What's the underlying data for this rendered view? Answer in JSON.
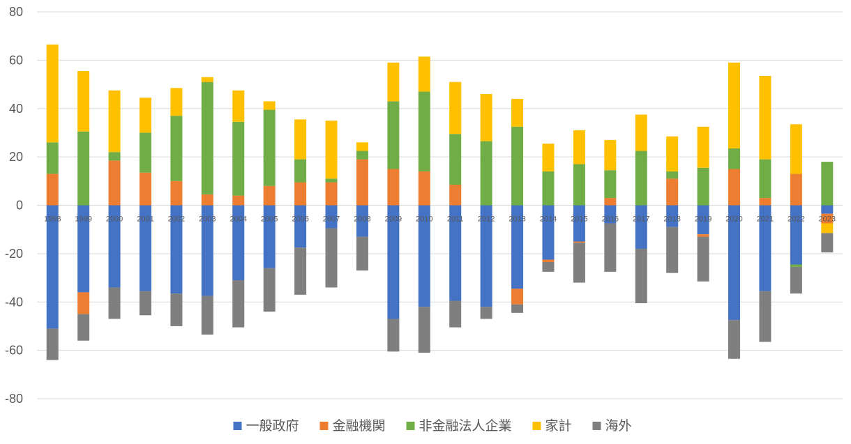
{
  "chart_data": {
    "type": "bar",
    "stacked": true,
    "categories": [
      "1998",
      "1999",
      "2000",
      "2001",
      "2002",
      "2003",
      "2004",
      "2005",
      "2006",
      "2007",
      "2008",
      "2009",
      "2010",
      "2011",
      "2012",
      "2013",
      "2014",
      "2015",
      "2016",
      "2017",
      "2018",
      "2019",
      "2020",
      "2021",
      "2022",
      "2023"
    ],
    "ylim": [
      -80,
      80
    ],
    "yticks": [
      80,
      60,
      40,
      20,
      0,
      -20,
      -40,
      -60,
      -80
    ],
    "grid": true,
    "legend_position": "bottom",
    "series": [
      {
        "name": "一般政府",
        "color": "#4472C4",
        "values": [
          -51,
          -36,
          -34,
          -35.5,
          -36.5,
          -37.5,
          -31,
          -26,
          -17.5,
          -9.5,
          -13,
          -47,
          -42,
          -39.5,
          -42,
          -34.5,
          -22.5,
          -15,
          -7.5,
          -18,
          -9,
          -12,
          -47.5,
          -35.5,
          -24.5,
          -3.5
        ]
      },
      {
        "name": "金融機関",
        "color": "#ED7D31",
        "values": [
          13,
          -9,
          18.5,
          13.5,
          10,
          4.5,
          4,
          8,
          9.5,
          9.5,
          19,
          15,
          14,
          8.5,
          0,
          -6.5,
          -1,
          -0.5,
          3,
          0,
          11,
          -1,
          15,
          3,
          13,
          -4
        ]
      },
      {
        "name": "非金融法人企業",
        "color": "#70AD47",
        "values": [
          13,
          30.5,
          3.5,
          16.5,
          27,
          46.5,
          30.5,
          31.5,
          9.5,
          1.5,
          3.5,
          28,
          33,
          21,
          26.5,
          32.5,
          14,
          17,
          11.5,
          22.5,
          3,
          15.5,
          8.5,
          16,
          -1,
          18
        ]
      },
      {
        "name": "家計",
        "color": "#FFC000",
        "values": [
          40.5,
          25,
          25.5,
          14.5,
          11.5,
          2,
          13,
          3.5,
          16.5,
          24,
          3.5,
          16,
          14.5,
          21.5,
          19.5,
          11.5,
          11.5,
          14,
          12.5,
          15,
          14.5,
          17,
          35.5,
          34.5,
          20.5,
          -4
        ]
      },
      {
        "name": "海外",
        "color": "#7F7F7F",
        "values": [
          -13,
          -11,
          -13,
          -10,
          -13.5,
          -16,
          -19.5,
          -18,
          -19.5,
          -24.5,
          -14,
          -13.5,
          -19,
          -11,
          -5,
          -3.5,
          -4,
          -16.5,
          -20,
          -22.5,
          -19,
          -18.5,
          -16,
          -21,
          -11,
          -8
        ]
      }
    ]
  }
}
